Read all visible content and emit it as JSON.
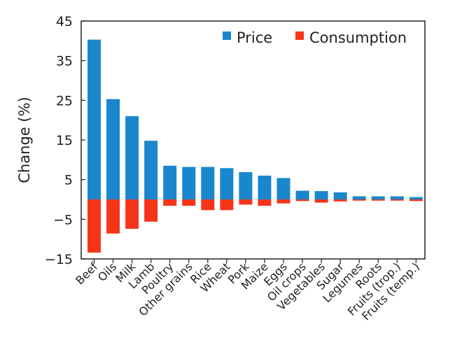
{
  "chart_data": {
    "type": "bar",
    "title": "",
    "xlabel": "",
    "ylabel": "Change (%)",
    "ylim": [
      -15,
      45
    ],
    "yticks": [
      -15,
      -5,
      5,
      15,
      25,
      35,
      45
    ],
    "ytick_labels": [
      "−15",
      "−5",
      "5",
      "15",
      "25",
      "35",
      "45"
    ],
    "grid": false,
    "legend_position": "top-right",
    "categories": [
      "Beef",
      "Oils",
      "Milk",
      "Lamb",
      "Poultry",
      "Other grains",
      "Rice",
      "Wheat",
      "Pork",
      "Maize",
      "Eggs",
      "Oil crops",
      "Vegetables",
      "Sugar",
      "Legumes",
      "Roots",
      "Fruits (trop.)",
      "Fruits (temp.)"
    ],
    "series": [
      {
        "name": "Price",
        "color": "#1a87cc",
        "values": [
          40.3,
          25.3,
          21.0,
          14.8,
          8.5,
          8.2,
          8.2,
          7.9,
          6.9,
          6.0,
          5.4,
          2.2,
          2.1,
          1.8,
          0.8,
          0.8,
          0.8,
          0.6
        ]
      },
      {
        "name": "Consumption",
        "color": "#f5351a",
        "values": [
          -13.4,
          -8.6,
          -7.4,
          -5.6,
          -1.6,
          -1.6,
          -2.7,
          -2.7,
          -1.3,
          -1.6,
          -1.0,
          -0.4,
          -0.8,
          -0.5,
          -0.3,
          -0.3,
          -0.3,
          -0.4
        ]
      }
    ]
  }
}
